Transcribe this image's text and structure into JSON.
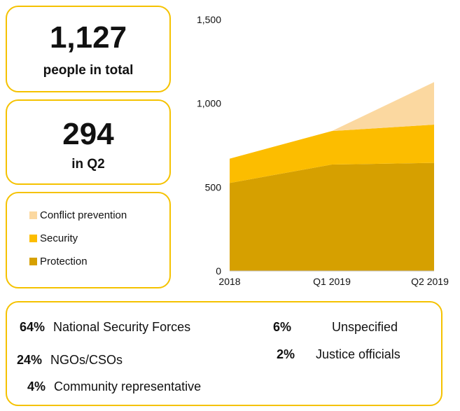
{
  "summary": {
    "total_value": "1,127",
    "total_label": "people in total",
    "q2_value": "294",
    "q2_label": "in Q2"
  },
  "legend": {
    "items": [
      {
        "label": "Conflict prevention",
        "color": "#fbd8a0"
      },
      {
        "label": "Security",
        "color": "#fcbd00"
      },
      {
        "label": "Protection",
        "color": "#d6a000"
      }
    ]
  },
  "breakdown": {
    "items": [
      {
        "pct": "64%",
        "label": "National Security Forces"
      },
      {
        "pct": "24%",
        "label": "NGOs/CSOs"
      },
      {
        "pct": "4%",
        "label": "Community representative"
      },
      {
        "pct": "6%",
        "label": "Unspecified"
      },
      {
        "pct": "2%",
        "label": "Justice officials"
      }
    ]
  },
  "chart_data": {
    "type": "area",
    "stacked": true,
    "categories": [
      "2018",
      "Q1 2019",
      "Q2 2019"
    ],
    "series": [
      {
        "name": "Protection",
        "values": [
          525,
          635,
          645
        ],
        "color": "#d6a000"
      },
      {
        "name": "Security",
        "values": [
          145,
          200,
          228
        ],
        "color": "#fcbd00"
      },
      {
        "name": "Conflict prevention",
        "values": [
          0,
          0,
          254
        ],
        "color": "#fbd8a0"
      }
    ],
    "ylim": [
      0,
      1500
    ],
    "yticks": [
      0,
      500,
      1000,
      1500
    ],
    "ytick_labels": [
      "0",
      "500",
      "1,000",
      "1,500"
    ],
    "grid": false
  }
}
